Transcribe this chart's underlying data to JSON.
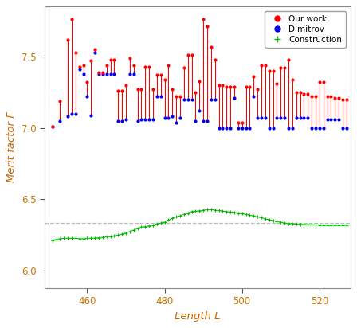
{
  "xlabel": "Length L",
  "ylabel": "Merit factor F",
  "xlim": [
    449,
    528
  ],
  "ylim": [
    5.88,
    7.85
  ],
  "yticks": [
    6.0,
    6.5,
    7.0,
    7.5
  ],
  "xticks": [
    460,
    480,
    500,
    520
  ],
  "dashed_line_y": 6.333,
  "background_color": "#ffffff",
  "red_color": "#ff0000",
  "blue_color": "#0000ee",
  "green_color": "#00bb00",
  "gray_color": "#bbbbbb",
  "label_color": "#cc6600",
  "tick_label_color": "#cc7700",
  "spine_color": "#888888",
  "legend_labels": [
    "Our work",
    "Dimitrov",
    "Construction"
  ],
  "red_points": [
    [
      451,
      7.01
    ],
    [
      453,
      7.19
    ],
    [
      455,
      7.62
    ],
    [
      456,
      7.76
    ],
    [
      457,
      7.53
    ],
    [
      458,
      7.43
    ],
    [
      459,
      7.44
    ],
    [
      460,
      7.32
    ],
    [
      461,
      7.47
    ],
    [
      462,
      7.55
    ],
    [
      463,
      7.39
    ],
    [
      464,
      7.39
    ],
    [
      465,
      7.44
    ],
    [
      466,
      7.48
    ],
    [
      467,
      7.48
    ],
    [
      468,
      7.26
    ],
    [
      469,
      7.26
    ],
    [
      470,
      7.3
    ],
    [
      471,
      7.49
    ],
    [
      472,
      7.44
    ],
    [
      473,
      7.27
    ],
    [
      474,
      7.27
    ],
    [
      475,
      7.43
    ],
    [
      476,
      7.43
    ],
    [
      477,
      7.27
    ],
    [
      478,
      7.37
    ],
    [
      479,
      7.37
    ],
    [
      480,
      7.34
    ],
    [
      481,
      7.44
    ],
    [
      482,
      7.27
    ],
    [
      483,
      7.22
    ],
    [
      484,
      7.22
    ],
    [
      485,
      7.42
    ],
    [
      486,
      7.51
    ],
    [
      487,
      7.51
    ],
    [
      488,
      7.25
    ],
    [
      489,
      7.33
    ],
    [
      490,
      7.76
    ],
    [
      491,
      7.71
    ],
    [
      492,
      7.57
    ],
    [
      493,
      7.48
    ],
    [
      494,
      7.3
    ],
    [
      495,
      7.3
    ],
    [
      496,
      7.29
    ],
    [
      497,
      7.29
    ],
    [
      498,
      7.29
    ],
    [
      499,
      7.04
    ],
    [
      500,
      7.04
    ],
    [
      501,
      7.29
    ],
    [
      502,
      7.29
    ],
    [
      503,
      7.36
    ],
    [
      504,
      7.27
    ],
    [
      505,
      7.44
    ],
    [
      506,
      7.44
    ],
    [
      507,
      7.4
    ],
    [
      508,
      7.4
    ],
    [
      509,
      7.31
    ],
    [
      510,
      7.42
    ],
    [
      511,
      7.42
    ],
    [
      512,
      7.48
    ],
    [
      513,
      7.34
    ],
    [
      514,
      7.25
    ],
    [
      515,
      7.25
    ],
    [
      516,
      7.24
    ],
    [
      517,
      7.24
    ],
    [
      518,
      7.22
    ],
    [
      519,
      7.22
    ],
    [
      520,
      7.32
    ],
    [
      521,
      7.32
    ],
    [
      522,
      7.22
    ],
    [
      523,
      7.22
    ],
    [
      524,
      7.21
    ],
    [
      525,
      7.21
    ],
    [
      526,
      7.2
    ],
    [
      527,
      7.2
    ]
  ],
  "blue_points": [
    [
      451,
      7.01
    ],
    [
      453,
      7.05
    ],
    [
      455,
      7.08
    ],
    [
      456,
      7.1
    ],
    [
      457,
      7.1
    ],
    [
      458,
      7.41
    ],
    [
      459,
      7.38
    ],
    [
      460,
      7.22
    ],
    [
      461,
      7.09
    ],
    [
      462,
      7.53
    ],
    [
      463,
      7.38
    ],
    [
      464,
      7.38
    ],
    [
      465,
      7.38
    ],
    [
      466,
      7.38
    ],
    [
      467,
      7.38
    ],
    [
      468,
      7.05
    ],
    [
      469,
      7.05
    ],
    [
      470,
      7.06
    ],
    [
      471,
      7.38
    ],
    [
      472,
      7.38
    ],
    [
      473,
      7.05
    ],
    [
      474,
      7.06
    ],
    [
      475,
      7.06
    ],
    [
      476,
      7.06
    ],
    [
      477,
      7.06
    ],
    [
      478,
      7.22
    ],
    [
      479,
      7.22
    ],
    [
      480,
      7.07
    ],
    [
      481,
      7.07
    ],
    [
      482,
      7.08
    ],
    [
      483,
      7.04
    ],
    [
      484,
      7.07
    ],
    [
      485,
      7.2
    ],
    [
      486,
      7.2
    ],
    [
      487,
      7.2
    ],
    [
      488,
      7.05
    ],
    [
      489,
      7.12
    ],
    [
      490,
      7.05
    ],
    [
      491,
      7.05
    ],
    [
      492,
      7.2
    ],
    [
      493,
      7.2
    ],
    [
      494,
      7.0
    ],
    [
      495,
      7.0
    ],
    [
      496,
      7.0
    ],
    [
      497,
      7.0
    ],
    [
      498,
      7.21
    ],
    [
      499,
      7.0
    ],
    [
      500,
      7.0
    ],
    [
      501,
      7.0
    ],
    [
      502,
      7.0
    ],
    [
      503,
      7.22
    ],
    [
      504,
      7.07
    ],
    [
      505,
      7.07
    ],
    [
      506,
      7.07
    ],
    [
      507,
      7.0
    ],
    [
      508,
      7.0
    ],
    [
      509,
      7.07
    ],
    [
      510,
      7.07
    ],
    [
      511,
      7.07
    ],
    [
      512,
      7.0
    ],
    [
      513,
      7.0
    ],
    [
      514,
      7.07
    ],
    [
      515,
      7.07
    ],
    [
      516,
      7.07
    ],
    [
      517,
      7.07
    ],
    [
      518,
      7.0
    ],
    [
      519,
      7.0
    ],
    [
      520,
      7.0
    ],
    [
      521,
      7.0
    ],
    [
      522,
      7.06
    ],
    [
      523,
      7.06
    ],
    [
      524,
      7.06
    ],
    [
      525,
      7.06
    ],
    [
      526,
      7.0
    ],
    [
      527,
      7.0
    ]
  ],
  "green_x": [
    451,
    452,
    453,
    454,
    455,
    456,
    457,
    458,
    459,
    460,
    461,
    462,
    463,
    464,
    465,
    466,
    467,
    468,
    469,
    470,
    471,
    472,
    473,
    474,
    475,
    476,
    477,
    478,
    479,
    480,
    481,
    482,
    483,
    484,
    485,
    486,
    487,
    488,
    489,
    490,
    491,
    492,
    493,
    494,
    495,
    496,
    497,
    498,
    499,
    500,
    501,
    502,
    503,
    504,
    505,
    506,
    507,
    508,
    509,
    510,
    511,
    512,
    513,
    514,
    515,
    516,
    517,
    518,
    519,
    520,
    521,
    522,
    523,
    524,
    525,
    526,
    527
  ],
  "green_y": [
    6.215,
    6.22,
    6.225,
    6.228,
    6.228,
    6.228,
    6.228,
    6.225,
    6.225,
    6.228,
    6.228,
    6.23,
    6.232,
    6.235,
    6.238,
    6.24,
    6.245,
    6.25,
    6.258,
    6.265,
    6.275,
    6.285,
    6.295,
    6.305,
    6.31,
    6.315,
    6.32,
    6.328,
    6.335,
    6.342,
    6.355,
    6.368,
    6.378,
    6.385,
    6.395,
    6.405,
    6.415,
    6.418,
    6.42,
    6.425,
    6.428,
    6.428,
    6.425,
    6.422,
    6.418,
    6.415,
    6.412,
    6.41,
    6.405,
    6.4,
    6.395,
    6.39,
    6.385,
    6.378,
    6.372,
    6.365,
    6.358,
    6.352,
    6.345,
    6.34,
    6.335,
    6.332,
    6.33,
    6.328,
    6.326,
    6.325,
    6.324,
    6.323,
    6.322,
    6.321,
    6.32,
    6.32,
    6.32,
    6.32,
    6.32,
    6.32,
    6.32
  ]
}
